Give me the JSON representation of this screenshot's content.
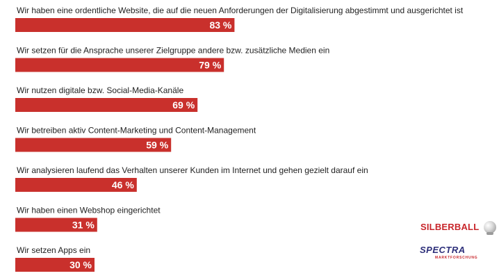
{
  "chart_data": {
    "type": "bar",
    "orientation": "horizontal",
    "categories": [
      "Wir haben eine ordentliche Website, die auf die neuen Anforderungen der Digitalisierung abgestimmt und ausgerichtet ist",
      "Wir setzen für die Ansprache unserer Zielgruppe andere bzw. zusätzliche Medien ein",
      "Wir nutzen digitale bzw. Social-Media-Kanäle",
      "Wir betreiben aktiv Content-Marketing und Content-Management",
      "Wir analysieren laufend das Verhalten unserer Kunden im Internet und gehen gezielt darauf ein",
      "Wir haben einen Webshop eingerichtet",
      "Wir setzen Apps ein"
    ],
    "values": [
      83,
      79,
      69,
      59,
      46,
      31,
      30
    ],
    "value_labels": [
      "83 %",
      "79 %",
      "69 %",
      "59 %",
      "46 %",
      "31 %",
      "30 %"
    ],
    "xlim": [
      0,
      100
    ],
    "bar_color": "#c9302c",
    "grid": false,
    "legend": "none"
  },
  "logos": {
    "silberball": "SILBERBALL",
    "spectra": "SPECTRA",
    "spectra_sub": "MARKTFORSCHUNG"
  }
}
